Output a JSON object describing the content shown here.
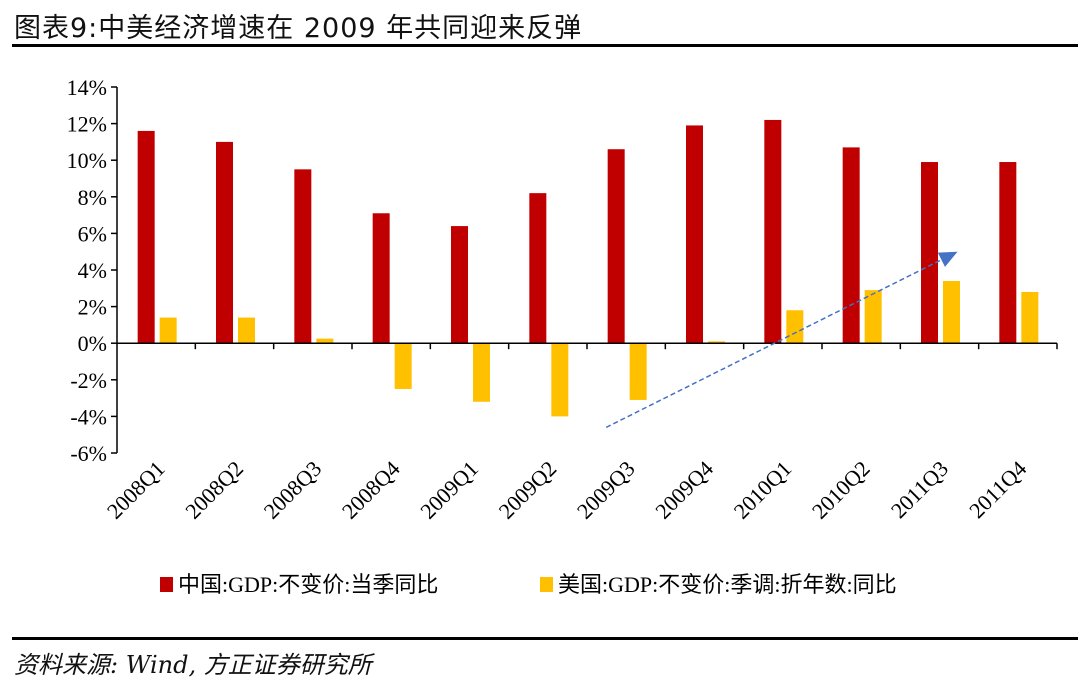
{
  "header": {
    "title": "图表9:中美经济增速在 2009 年共同迎来反弹"
  },
  "footer": {
    "source": "资料来源: Wind, 方正证券研究所"
  },
  "chart_data": {
    "type": "bar",
    "title": "图表9:中美经济增速在 2009 年共同迎来反弹",
    "xlabel": "",
    "ylabel": "",
    "categories": [
      "2008Q1",
      "2008Q2",
      "2008Q3",
      "2008Q4",
      "2009Q1",
      "2009Q2",
      "2009Q3",
      "2009Q4",
      "2010Q1",
      "2010Q2",
      "2011Q3",
      "2011Q4"
    ],
    "series": [
      {
        "name": "中国:GDP:不变价:当季同比",
        "color": "#C00000",
        "values": [
          11.6,
          11.0,
          9.5,
          7.1,
          6.4,
          8.2,
          10.6,
          11.9,
          12.2,
          10.7,
          9.9,
          9.9
        ]
      },
      {
        "name": "美国:GDP:不变价:季调:折年数:同比",
        "color": "#FFC000",
        "values": [
          1.4,
          1.4,
          0.25,
          -2.5,
          -3.2,
          -4.0,
          -3.1,
          0.1,
          1.8,
          2.9,
          3.4,
          2.8
        ]
      }
    ],
    "ylim": [
      -6,
      14
    ],
    "yticks": [
      -6,
      -4,
      -2,
      0,
      2,
      4,
      6,
      8,
      10,
      12,
      14
    ],
    "ytick_suffix": "%",
    "grid": false,
    "legend": "bottom",
    "annotations": [
      {
        "type": "dashed-arrow",
        "color": "#4472C4",
        "from": {
          "category": "2009Q3",
          "value": -4.6
        },
        "to": {
          "category": "2011Q3",
          "value": 5.0
        },
        "meaning": "upward trend"
      }
    ]
  }
}
